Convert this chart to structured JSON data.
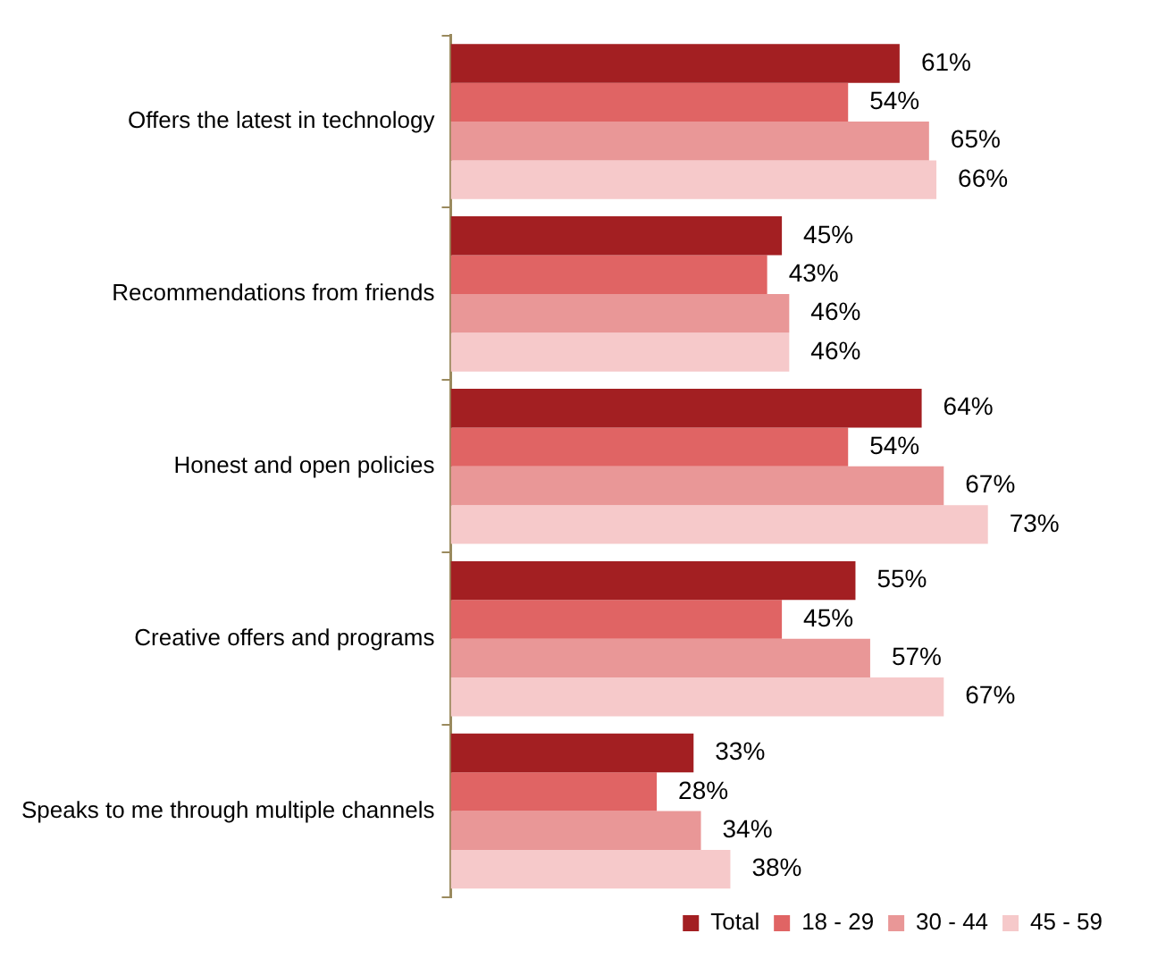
{
  "chart_data": {
    "type": "bar",
    "orientation": "horizontal",
    "categories": [
      "Offers the latest in technology",
      "Recommendations from friends",
      "Honest and open policies",
      "Creative offers and programs",
      "Speaks to me through multiple channels"
    ],
    "series": [
      {
        "name": "Total",
        "color": "#a31f22",
        "values": [
          61,
          45,
          64,
          55,
          33
        ],
        "value_labels": [
          "61%",
          "45%",
          "64%",
          "55%",
          "33%"
        ]
      },
      {
        "name": "18 - 29",
        "color": "#e06464",
        "values": [
          54,
          43,
          54,
          45,
          28
        ],
        "value_labels": [
          "54%",
          "43%",
          "54%",
          "45%",
          "28%"
        ]
      },
      {
        "name": "30 - 44",
        "color": "#e99797",
        "values": [
          65,
          46,
          67,
          57,
          34
        ],
        "value_labels": [
          "65%",
          "46%",
          "67%",
          "57%",
          "34%"
        ]
      },
      {
        "name": "45 - 59",
        "color": "#f6c9ca",
        "values": [
          66,
          46,
          73,
          67,
          38
        ],
        "value_labels": [
          "66%",
          "46%",
          "73%",
          "67%",
          "38%"
        ]
      }
    ],
    "legend": "bottom right"
  }
}
